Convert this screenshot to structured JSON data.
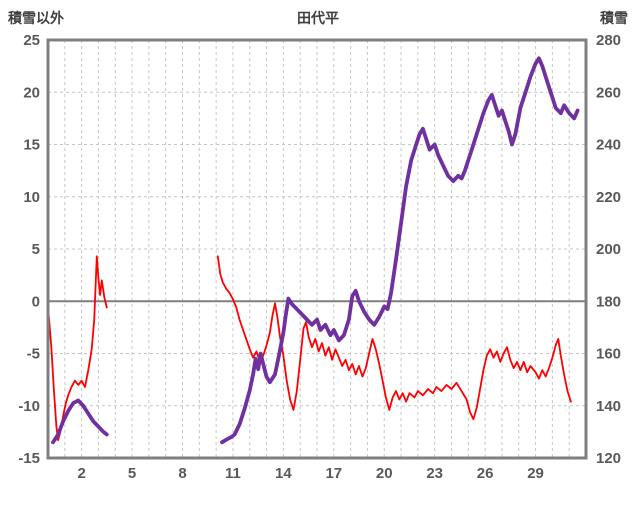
{
  "titles": {
    "left_axis": "積雪以外",
    "chart": "田代平",
    "right_axis": "積雪"
  },
  "colors": {
    "red_series": "#FF0000",
    "purple_series": "#7030A0",
    "grid": "#C6C6C6",
    "axis": "#7F7F7F",
    "tick_text": "#595959",
    "title_text": "#404040",
    "background": "#FFFFFF"
  },
  "chart_data": {
    "type": "line",
    "title": "田代平",
    "x_axis": {
      "range": [
        0,
        32
      ],
      "ticks": [
        2,
        5,
        8,
        11,
        14,
        17,
        20,
        23,
        26,
        29
      ],
      "gridline_every": 1,
      "unit": "day"
    },
    "left_axis": {
      "title": "積雪以外",
      "range": [
        -15,
        25
      ],
      "ticks": [
        25,
        20,
        15,
        10,
        5,
        0,
        -5,
        -10,
        -15
      ]
    },
    "right_axis": {
      "title": "積雪",
      "range": [
        120,
        280
      ],
      "ticks": [
        280,
        260,
        240,
        220,
        200,
        180,
        160,
        140,
        120
      ]
    },
    "zero_line_value": 0,
    "grid_style": "dashed",
    "legend": "none",
    "series": [
      {
        "name": "積雪以外",
        "axis": "left",
        "color": "#FF0000",
        "stroke_width": 1.8,
        "segments": [
          [
            [
              0.05,
              -1.4
            ],
            [
              0.2,
              -4.5
            ],
            [
              0.35,
              -8.5
            ],
            [
              0.5,
              -12.0
            ],
            [
              0.6,
              -13.3
            ],
            [
              0.75,
              -12.4
            ],
            [
              0.9,
              -11.0
            ],
            [
              1.05,
              -9.8
            ],
            [
              1.2,
              -9.0
            ],
            [
              1.4,
              -8.2
            ],
            [
              1.6,
              -7.6
            ],
            [
              1.8,
              -8.0
            ],
            [
              2.0,
              -7.6
            ],
            [
              2.2,
              -8.2
            ],
            [
              2.4,
              -6.6
            ],
            [
              2.6,
              -4.6
            ],
            [
              2.75,
              -1.8
            ],
            [
              2.9,
              4.3
            ],
            [
              3.0,
              2.2
            ],
            [
              3.1,
              0.6
            ],
            [
              3.2,
              2.0
            ],
            [
              3.35,
              0.4
            ],
            [
              3.5,
              -0.6
            ]
          ],
          [
            [
              10.1,
              4.3
            ],
            [
              10.25,
              2.6
            ],
            [
              10.4,
              1.8
            ],
            [
              10.6,
              1.2
            ],
            [
              10.8,
              0.8
            ],
            [
              11.0,
              0.2
            ],
            [
              11.2,
              -0.6
            ],
            [
              11.4,
              -1.8
            ],
            [
              11.7,
              -3.2
            ],
            [
              12.0,
              -4.6
            ],
            [
              12.2,
              -5.4
            ],
            [
              12.4,
              -4.8
            ],
            [
              12.6,
              -5.8
            ],
            [
              12.8,
              -5.2
            ],
            [
              13.0,
              -4.2
            ],
            [
              13.2,
              -3.0
            ],
            [
              13.35,
              -1.4
            ],
            [
              13.5,
              -0.2
            ],
            [
              13.65,
              -1.6
            ],
            [
              13.8,
              -3.4
            ],
            [
              14.0,
              -5.2
            ],
            [
              14.2,
              -7.6
            ],
            [
              14.4,
              -9.4
            ],
            [
              14.6,
              -10.4
            ],
            [
              14.8,
              -8.6
            ],
            [
              15.0,
              -5.6
            ],
            [
              15.2,
              -2.6
            ],
            [
              15.35,
              -2.0
            ],
            [
              15.5,
              -3.4
            ],
            [
              15.7,
              -4.4
            ],
            [
              15.9,
              -3.6
            ],
            [
              16.1,
              -4.8
            ],
            [
              16.3,
              -4.0
            ],
            [
              16.5,
              -5.2
            ],
            [
              16.7,
              -4.4
            ],
            [
              16.9,
              -5.6
            ],
            [
              17.1,
              -4.6
            ],
            [
              17.3,
              -5.4
            ],
            [
              17.5,
              -6.2
            ],
            [
              17.7,
              -5.6
            ],
            [
              17.9,
              -6.6
            ],
            [
              18.1,
              -6.0
            ],
            [
              18.3,
              -7.0
            ],
            [
              18.5,
              -6.2
            ],
            [
              18.7,
              -7.2
            ],
            [
              18.9,
              -6.4
            ],
            [
              19.1,
              -5.0
            ],
            [
              19.3,
              -3.6
            ],
            [
              19.5,
              -4.6
            ],
            [
              19.7,
              -6.0
            ],
            [
              19.9,
              -7.6
            ],
            [
              20.1,
              -9.2
            ],
            [
              20.3,
              -10.4
            ],
            [
              20.5,
              -9.2
            ],
            [
              20.7,
              -8.6
            ],
            [
              20.9,
              -9.4
            ],
            [
              21.1,
              -8.8
            ],
            [
              21.3,
              -9.6
            ],
            [
              21.5,
              -8.8
            ],
            [
              21.8,
              -9.2
            ],
            [
              22.0,
              -8.6
            ],
            [
              22.3,
              -9.0
            ],
            [
              22.6,
              -8.4
            ],
            [
              22.9,
              -8.8
            ],
            [
              23.1,
              -8.2
            ],
            [
              23.4,
              -8.6
            ],
            [
              23.7,
              -8.0
            ],
            [
              24.0,
              -8.4
            ],
            [
              24.3,
              -7.8
            ],
            [
              24.6,
              -8.6
            ],
            [
              24.9,
              -9.4
            ],
            [
              25.1,
              -10.6
            ],
            [
              25.3,
              -11.3
            ],
            [
              25.5,
              -10.2
            ],
            [
              25.7,
              -8.4
            ],
            [
              25.9,
              -6.6
            ],
            [
              26.1,
              -5.2
            ],
            [
              26.3,
              -4.6
            ],
            [
              26.5,
              -5.4
            ],
            [
              26.7,
              -4.8
            ],
            [
              26.9,
              -5.8
            ],
            [
              27.1,
              -5.0
            ],
            [
              27.3,
              -4.4
            ],
            [
              27.5,
              -5.6
            ],
            [
              27.7,
              -6.4
            ],
            [
              27.9,
              -5.8
            ],
            [
              28.1,
              -6.6
            ],
            [
              28.3,
              -5.8
            ],
            [
              28.5,
              -6.8
            ],
            [
              28.7,
              -6.2
            ],
            [
              29.0,
              -6.8
            ],
            [
              29.2,
              -7.4
            ],
            [
              29.4,
              -6.6
            ],
            [
              29.6,
              -7.2
            ],
            [
              29.8,
              -6.4
            ],
            [
              30.0,
              -5.4
            ],
            [
              30.2,
              -4.2
            ],
            [
              30.35,
              -3.6
            ],
            [
              30.5,
              -5.2
            ],
            [
              30.7,
              -7.0
            ],
            [
              30.9,
              -8.6
            ],
            [
              31.1,
              -9.6
            ]
          ]
        ]
      },
      {
        "name": "積雪",
        "axis": "right",
        "color": "#7030A0",
        "stroke_width": 3.8,
        "segments": [
          [
            [
              0.3,
              126
            ],
            [
              0.6,
              129
            ],
            [
              0.9,
              134
            ],
            [
              1.2,
              138
            ],
            [
              1.5,
              141
            ],
            [
              1.8,
              142
            ],
            [
              2.1,
              140
            ],
            [
              2.4,
              137
            ],
            [
              2.7,
              134
            ],
            [
              3.0,
              132
            ],
            [
              3.3,
              130
            ],
            [
              3.5,
              129
            ]
          ],
          [
            [
              10.35,
              126
            ],
            [
              10.6,
              127
            ],
            [
              10.9,
              128
            ],
            [
              11.1,
              129
            ],
            [
              11.4,
              133
            ],
            [
              11.7,
              139
            ],
            [
              12.0,
              146
            ],
            [
              12.2,
              152
            ],
            [
              12.35,
              158
            ],
            [
              12.5,
              154
            ],
            [
              12.65,
              160
            ],
            [
              12.8,
              156
            ],
            [
              13.0,
              151
            ],
            [
              13.2,
              149
            ],
            [
              13.5,
              152
            ],
            [
              13.7,
              158
            ],
            [
              14.0,
              168
            ],
            [
              14.15,
              175
            ],
            [
              14.3,
              181
            ],
            [
              14.5,
              179
            ],
            [
              14.8,
              177
            ],
            [
              15.1,
              175
            ],
            [
              15.4,
              173
            ],
            [
              15.7,
              171
            ],
            [
              16.0,
              173
            ],
            [
              16.2,
              169
            ],
            [
              16.5,
              171
            ],
            [
              16.8,
              167
            ],
            [
              17.0,
              169
            ],
            [
              17.3,
              165
            ],
            [
              17.6,
              167
            ],
            [
              17.9,
              173
            ],
            [
              18.1,
              182
            ],
            [
              18.3,
              184
            ],
            [
              18.5,
              180
            ],
            [
              18.8,
              176
            ],
            [
              19.1,
              173
            ],
            [
              19.4,
              171
            ],
            [
              19.7,
              174
            ],
            [
              20.0,
              178
            ],
            [
              20.2,
              177
            ],
            [
              20.4,
              183
            ],
            [
              20.7,
              196
            ],
            [
              21.0,
              210
            ],
            [
              21.3,
              224
            ],
            [
              21.6,
              234
            ],
            [
              21.9,
              240
            ],
            [
              22.1,
              244
            ],
            [
              22.3,
              246
            ],
            [
              22.5,
              242
            ],
            [
              22.7,
              238
            ],
            [
              23.0,
              240
            ],
            [
              23.2,
              236
            ],
            [
              23.5,
              232
            ],
            [
              23.8,
              228
            ],
            [
              24.1,
              226
            ],
            [
              24.4,
              228
            ],
            [
              24.6,
              227
            ],
            [
              24.8,
              230
            ],
            [
              25.0,
              234
            ],
            [
              25.3,
              240
            ],
            [
              25.6,
              246
            ],
            [
              25.9,
              252
            ],
            [
              26.2,
              257
            ],
            [
              26.4,
              259
            ],
            [
              26.6,
              255
            ],
            [
              26.8,
              251
            ],
            [
              27.0,
              253
            ],
            [
              27.2,
              249
            ],
            [
              27.4,
              245
            ],
            [
              27.6,
              240
            ],
            [
              27.8,
              244
            ],
            [
              28.1,
              254
            ],
            [
              28.4,
              260
            ],
            [
              28.7,
              266
            ],
            [
              29.0,
              271
            ],
            [
              29.2,
              273
            ],
            [
              29.4,
              270
            ],
            [
              29.7,
              264
            ],
            [
              30.0,
              258
            ],
            [
              30.2,
              254
            ],
            [
              30.5,
              252
            ],
            [
              30.7,
              255
            ],
            [
              31.0,
              252
            ],
            [
              31.3,
              250
            ],
            [
              31.5,
              253
            ]
          ]
        ]
      }
    ]
  }
}
